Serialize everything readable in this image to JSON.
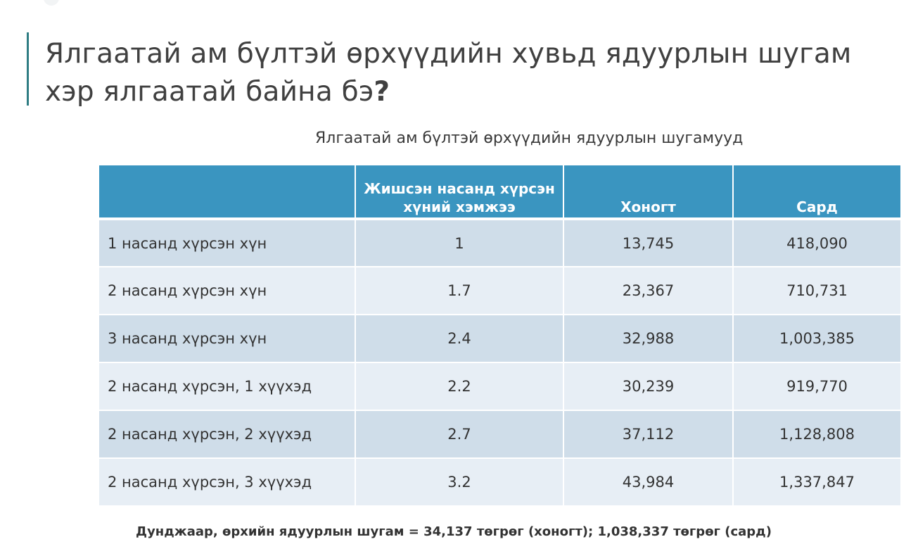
{
  "slide": {
    "title": "Ялгаатай ам бүлтэй өрхүүдийн хувьд ядуурлын шугам хэр ялгаатай байна бэ",
    "title_mark": "?",
    "accent_color": "#2f7d83"
  },
  "table": {
    "caption": "Ялгаатай ам бүлтэй өрхүүдийн ядуурлын шугамууд",
    "header_color": "#3a95c0",
    "columns": [
      "",
      "Жишсэн насанд хүрсэн хүний хэмжээ",
      "Хоногт",
      "Сард"
    ],
    "rows": [
      {
        "label": "1 насанд хүрсэн хүн",
        "equivalent": "1",
        "daily": "13,745",
        "monthly": "418,090"
      },
      {
        "label": "2 насанд хүрсэн хүн",
        "equivalent": "1.7",
        "daily": "23,367",
        "monthly": "710,731"
      },
      {
        "label": "3 насанд хүрсэн хүн",
        "equivalent": "2.4",
        "daily": "32,988",
        "monthly": "1,003,385"
      },
      {
        "label": "2 насанд хүрсэн, 1 хүүхэд",
        "equivalent": "2.2",
        "daily": "30,239",
        "monthly": "919,770"
      },
      {
        "label": "2 насанд хүрсэн, 2 хүүхэд",
        "equivalent": "2.7",
        "daily": "37,112",
        "monthly": "1,128,808"
      },
      {
        "label": "2 насанд хүрсэн, 3 хүүхэд",
        "equivalent": "3.2",
        "daily": "43,984",
        "monthly": "1,337,847"
      }
    ]
  },
  "summary": "Дунджаар, өрхийн ядуурлын шугам = 34,137 төгрөг (хоногт); 1,038,337 төгрөг (сард)"
}
